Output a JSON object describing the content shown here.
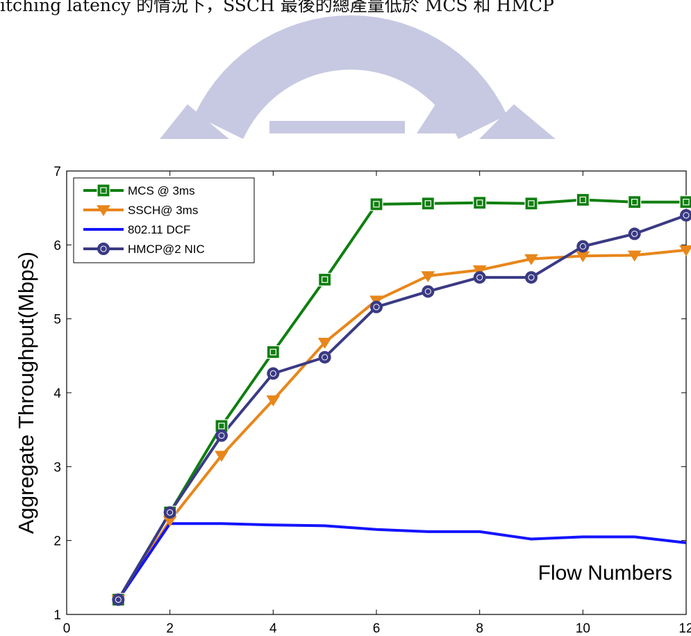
{
  "header": {
    "caption": "itching latency 的情況下，SSCH 最後的總產量低於 MCS 和 HMCP"
  },
  "watermark": {
    "name": "university-seal-watermark",
    "color": "#c7c9e3"
  },
  "chart_data": {
    "type": "line",
    "title": "",
    "xlabel": "Flow Numbers",
    "ylabel": "Aggregate Throughput(Mbps)",
    "xlim": [
      0,
      12
    ],
    "ylim": [
      1,
      7
    ],
    "xticks": [
      0,
      2,
      4,
      6,
      8,
      10,
      12
    ],
    "yticks": [
      1,
      2,
      3,
      4,
      5,
      6,
      7
    ],
    "grid": false,
    "legend_position": "top-left",
    "series": [
      {
        "name": "MCS @ 3ms",
        "color": "#0f7f0f",
        "marker": "square",
        "x": [
          1,
          2,
          3,
          4,
          5,
          6,
          7,
          8,
          9,
          10,
          11,
          12
        ],
        "values": [
          1.2,
          2.38,
          3.55,
          4.55,
          5.53,
          6.55,
          6.56,
          6.57,
          6.56,
          6.61,
          6.58,
          6.58
        ]
      },
      {
        "name": "SSCH@ 3ms",
        "color": "#e8861a",
        "marker": "triangle-down",
        "x": [
          1,
          2,
          3,
          4,
          5,
          6,
          7,
          8,
          9,
          10,
          11,
          12
        ],
        "values": [
          1.2,
          2.27,
          3.15,
          3.9,
          4.68,
          5.25,
          5.58,
          5.66,
          5.81,
          5.85,
          5.86,
          5.93
        ]
      },
      {
        "name": "802.11 DCF",
        "color": "#1414ff",
        "marker": "none",
        "x": [
          1,
          2,
          3,
          4,
          5,
          6,
          7,
          8,
          9,
          10,
          11,
          12
        ],
        "values": [
          1.2,
          2.23,
          2.23,
          2.21,
          2.2,
          2.15,
          2.12,
          2.12,
          2.02,
          2.05,
          2.05,
          1.97
        ]
      },
      {
        "name": "HMCP@2 NIC",
        "color": "#3a3a84",
        "marker": "circle",
        "x": [
          1,
          2,
          3,
          4,
          5,
          6,
          7,
          8,
          9,
          10,
          11,
          12
        ],
        "values": [
          1.2,
          2.38,
          3.42,
          4.26,
          4.48,
          5.16,
          5.37,
          5.56,
          5.56,
          5.98,
          6.15,
          6.4
        ]
      }
    ]
  }
}
